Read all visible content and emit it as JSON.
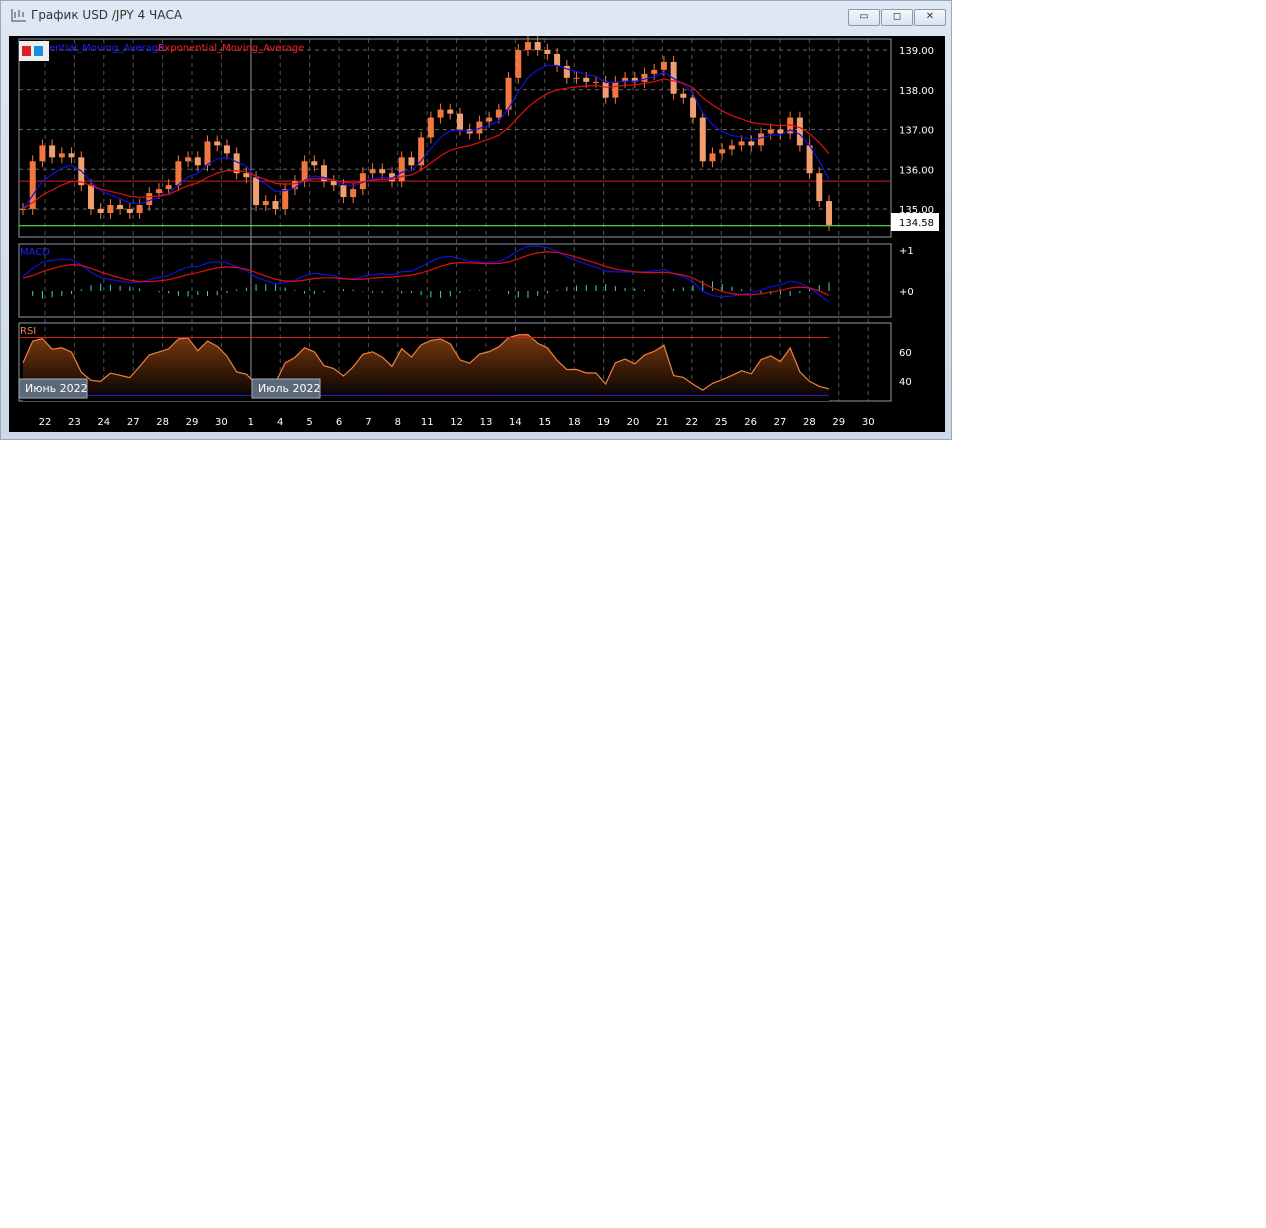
{
  "window": {
    "title": "График USD /JPY  4 ЧАСА",
    "minimize": "▭",
    "maximize": "◻",
    "close": "✕"
  },
  "legend": {
    "sma": "ential_Moving_Average",
    "ema": "Exponential_Moving_Average"
  },
  "colors": {
    "candle": "#f07840",
    "sma": "#1010e0",
    "ema": "#e01010",
    "resistance": "#d02020",
    "support": "#60ff60",
    "macd_hist": "#40d0d0"
  },
  "chart_data": {
    "type": "candlestick",
    "price_axis": {
      "ticks": [
        "139.00",
        "138.00",
        "137.00",
        "136.00",
        "135.00"
      ],
      "range": [
        134.3,
        139.3
      ]
    },
    "current_price": "134.58",
    "resistance_level": 135.7,
    "x_ticks": [
      "22",
      "23",
      "24",
      "27",
      "28",
      "29",
      "30",
      "1",
      "4",
      "5",
      "6",
      "7",
      "8",
      "11",
      "12",
      "13",
      "14",
      "15",
      "18",
      "19",
      "20",
      "21",
      "22",
      "25",
      "26",
      "27",
      "28",
      "29",
      "30"
    ],
    "month_labels": [
      "Июнь 2022",
      "Июль 2022"
    ],
    "closes": [
      135.0,
      136.2,
      136.6,
      136.3,
      136.4,
      136.3,
      135.6,
      135.0,
      134.9,
      135.1,
      135.0,
      134.9,
      135.1,
      135.4,
      135.5,
      135.6,
      136.2,
      136.3,
      136.1,
      136.7,
      136.6,
      136.4,
      135.9,
      135.8,
      135.1,
      135.2,
      135.0,
      135.5,
      135.7,
      136.2,
      136.1,
      135.7,
      135.6,
      135.3,
      135.5,
      135.9,
      136.0,
      135.9,
      135.7,
      136.3,
      136.1,
      136.8,
      137.3,
      137.5,
      137.4,
      137.0,
      136.9,
      137.2,
      137.3,
      137.5,
      138.3,
      139.0,
      139.2,
      139.0,
      138.9,
      138.6,
      138.3,
      138.3,
      138.2,
      138.2,
      137.8,
      138.2,
      138.3,
      138.2,
      138.4,
      138.5,
      138.7,
      137.9,
      137.8,
      137.3,
      136.2,
      136.4,
      136.5,
      136.6,
      136.7,
      136.6,
      136.9,
      137.0,
      136.9,
      137.3,
      136.6,
      135.9,
      135.2,
      134.6
    ],
    "macd": {
      "label": "MACD",
      "ticks": [
        "+1",
        "+0"
      ]
    },
    "rsi": {
      "label": "RSI",
      "ticks": [
        "60",
        "40"
      ],
      "levels": [
        70,
        30
      ]
    }
  }
}
